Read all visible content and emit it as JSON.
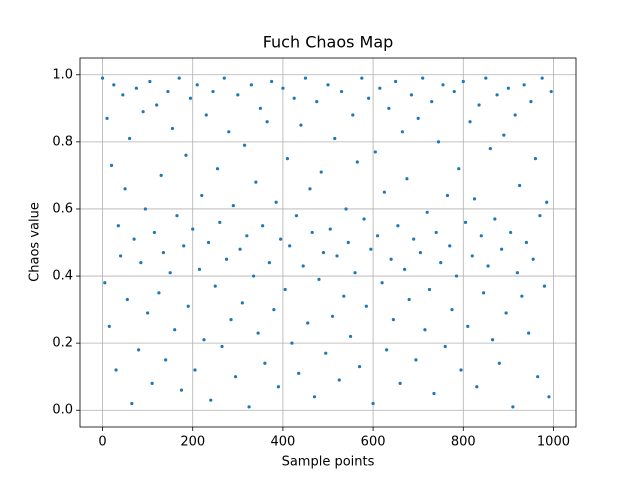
{
  "chart_data": {
    "type": "scatter",
    "title": "Fuch Chaos Map",
    "xlabel": "Sample points",
    "ylabel": "Chaos value",
    "color": "#1f77b4",
    "grid": true,
    "xlim": [
      -50,
      1050
    ],
    "ylim": [
      -0.05,
      1.05
    ],
    "xticks": [
      0,
      200,
      400,
      600,
      800,
      1000
    ],
    "yticks": [
      {
        "value": 0,
        "label": "0.0"
      },
      0.2,
      0.4,
      0.6,
      0.8,
      {
        "value": 1,
        "label": "1.0"
      }
    ],
    "x": [
      0,
      5,
      10,
      15,
      20,
      25,
      30,
      35,
      40,
      45,
      50,
      55,
      60,
      65,
      70,
      75,
      80,
      85,
      90,
      95,
      100,
      105,
      110,
      115,
      120,
      125,
      130,
      135,
      140,
      145,
      150,
      155,
      160,
      165,
      170,
      175,
      180,
      185,
      190,
      195,
      200,
      205,
      210,
      215,
      220,
      225,
      230,
      235,
      240,
      245,
      250,
      255,
      260,
      265,
      270,
      275,
      280,
      285,
      290,
      295,
      300,
      305,
      310,
      315,
      320,
      325,
      330,
      335,
      340,
      345,
      350,
      355,
      360,
      365,
      370,
      375,
      380,
      385,
      390,
      395,
      400,
      405,
      410,
      415,
      420,
      425,
      430,
      435,
      440,
      445,
      450,
      455,
      460,
      465,
      470,
      475,
      480,
      485,
      490,
      495,
      500,
      505,
      510,
      515,
      520,
      525,
      530,
      535,
      540,
      545,
      550,
      555,
      560,
      565,
      570,
      575,
      580,
      585,
      590,
      595,
      600,
      605,
      610,
      615,
      620,
      625,
      630,
      635,
      640,
      645,
      650,
      655,
      660,
      665,
      670,
      675,
      680,
      685,
      690,
      695,
      700,
      705,
      710,
      715,
      720,
      725,
      730,
      735,
      740,
      745,
      750,
      755,
      760,
      765,
      770,
      775,
      780,
      785,
      790,
      795,
      800,
      805,
      810,
      815,
      820,
      825,
      830,
      835,
      840,
      845,
      850,
      855,
      860,
      865,
      870,
      875,
      880,
      885,
      890,
      895,
      900,
      905,
      910,
      915,
      920,
      925,
      930,
      935,
      940,
      945,
      950,
      955,
      960,
      965,
      970,
      975,
      980,
      985,
      990,
      995
    ],
    "values": [
      0.99,
      0.38,
      0.87,
      0.25,
      0.73,
      0.97,
      0.12,
      0.55,
      0.46,
      0.94,
      0.66,
      0.33,
      0.81,
      0.02,
      0.51,
      0.96,
      0.18,
      0.44,
      0.89,
      0.6,
      0.29,
      0.98,
      0.08,
      0.53,
      0.91,
      0.35,
      0.7,
      0.47,
      0.15,
      0.95,
      0.41,
      0.84,
      0.24,
      0.58,
      0.99,
      0.06,
      0.49,
      0.76,
      0.31,
      0.93,
      0.54,
      0.12,
      0.97,
      0.42,
      0.64,
      0.21,
      0.88,
      0.5,
      0.03,
      0.95,
      0.37,
      0.72,
      0.56,
      0.19,
      0.99,
      0.45,
      0.83,
      0.27,
      0.61,
      0.1,
      0.94,
      0.48,
      0.32,
      0.79,
      0.52,
      0.01,
      0.97,
      0.4,
      0.68,
      0.23,
      0.9,
      0.55,
      0.14,
      0.86,
      0.44,
      0.98,
      0.3,
      0.62,
      0.07,
      0.51,
      0.96,
      0.36,
      0.75,
      0.49,
      0.2,
      0.93,
      0.58,
      0.11,
      0.85,
      0.43,
      0.99,
      0.26,
      0.66,
      0.53,
      0.04,
      0.92,
      0.39,
      0.71,
      0.47,
      0.17,
      0.97,
      0.54,
      0.28,
      0.81,
      0.46,
      0.09,
      0.95,
      0.34,
      0.6,
      0.5,
      0.22,
      0.88,
      0.41,
      0.74,
      0.13,
      0.99,
      0.57,
      0.31,
      0.93,
      0.48,
      0.02,
      0.77,
      0.52,
      0.96,
      0.38,
      0.65,
      0.18,
      0.9,
      0.45,
      0.27,
      0.98,
      0.55,
      0.08,
      0.83,
      0.42,
      0.69,
      0.33,
      0.94,
      0.51,
      0.15,
      0.87,
      0.47,
      0.99,
      0.24,
      0.59,
      0.36,
      0.92,
      0.05,
      0.53,
      0.8,
      0.44,
      0.97,
      0.19,
      0.64,
      0.49,
      0.3,
      0.95,
      0.4,
      0.72,
      0.12,
      0.98,
      0.56,
      0.25,
      0.86,
      0.46,
      0.63,
      0.07,
      0.91,
      0.52,
      0.35,
      0.99,
      0.43,
      0.78,
      0.21,
      0.57,
      0.94,
      0.14,
      0.48,
      0.82,
      0.29,
      0.96,
      0.53,
      0.01,
      0.88,
      0.41,
      0.67,
      0.34,
      0.97,
      0.5,
      0.23,
      0.92,
      0.45,
      0.75,
      0.1,
      0.58,
      0.99,
      0.37,
      0.62,
      0.04,
      0.95
    ]
  }
}
